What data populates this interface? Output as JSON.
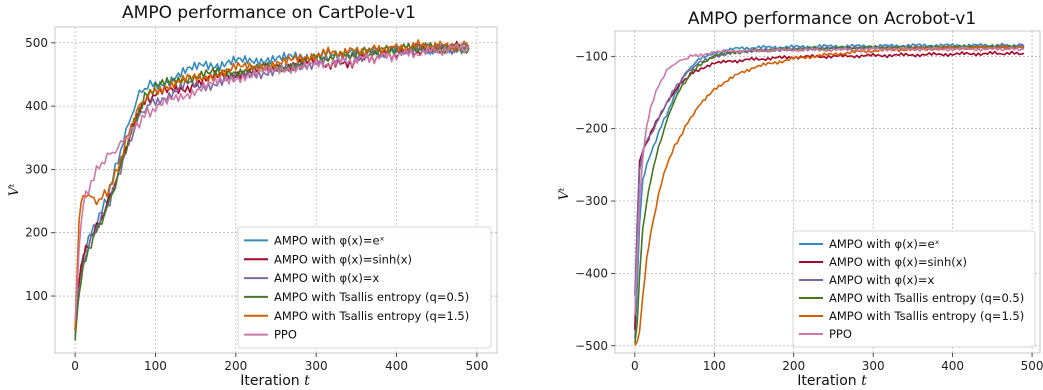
{
  "colors": {
    "exp": "#348abd",
    "sinh": "#a60628",
    "lin": "#7a68a6",
    "ts05": "#467821",
    "ts15": "#d55e00",
    "ppo": "#cc79a7"
  },
  "chart_data": [
    {
      "type": "line",
      "title": "AMPO performance on CartPole-v1",
      "xlabel": "Iteration t",
      "ylabel": "Vᵗ",
      "xlim": [
        -25,
        525
      ],
      "ylim": [
        10,
        525
      ],
      "xticks": [
        0,
        100,
        200,
        300,
        400,
        500
      ],
      "yticks": [
        100,
        200,
        300,
        400,
        500
      ],
      "grid": true,
      "legend_position": "lower-right",
      "series": [
        {
          "name": "AMPO with φ(x)=eˣ",
          "color_key": "exp",
          "x": [
            0,
            5,
            10,
            20,
            30,
            40,
            50,
            60,
            70,
            80,
            90,
            100,
            120,
            140,
            160,
            180,
            200,
            220,
            240,
            260,
            280,
            300,
            330,
            360,
            400,
            430,
            460,
            490
          ],
          "y": [
            45,
            130,
            165,
            200,
            225,
            255,
            300,
            345,
            385,
            420,
            432,
            435,
            442,
            455,
            468,
            465,
            470,
            472,
            475,
            475,
            478,
            480,
            482,
            485,
            488,
            490,
            492,
            493
          ]
        },
        {
          "name": "AMPO with φ(x)=sinh(x)",
          "color_key": "sinh",
          "x": [
            0,
            5,
            10,
            20,
            30,
            40,
            50,
            60,
            70,
            80,
            90,
            100,
            120,
            140,
            160,
            180,
            200,
            220,
            240,
            260,
            280,
            300,
            330,
            360,
            400,
            430,
            460,
            490
          ],
          "y": [
            40,
            120,
            160,
            195,
            215,
            245,
            280,
            320,
            360,
            395,
            410,
            418,
            425,
            430,
            440,
            448,
            452,
            455,
            458,
            462,
            470,
            468,
            465,
            475,
            482,
            488,
            492,
            495
          ]
        },
        {
          "name": "AMPO with φ(x)=x",
          "color_key": "lin",
          "x": [
            0,
            5,
            10,
            20,
            30,
            40,
            50,
            60,
            70,
            80,
            90,
            100,
            120,
            140,
            160,
            180,
            200,
            220,
            240,
            260,
            280,
            300,
            330,
            360,
            400,
            430,
            460,
            490
          ],
          "y": [
            38,
            110,
            150,
            190,
            215,
            240,
            275,
            315,
            350,
            385,
            400,
            408,
            420,
            435,
            430,
            440,
            445,
            450,
            455,
            458,
            462,
            470,
            475,
            480,
            488,
            490,
            492,
            490
          ]
        },
        {
          "name": "AMPO with Tsallis entropy (q=0.5)",
          "color_key": "ts05",
          "x": [
            0,
            5,
            10,
            20,
            30,
            40,
            50,
            60,
            70,
            80,
            90,
            100,
            120,
            140,
            160,
            180,
            200,
            220,
            240,
            260,
            280,
            300,
            330,
            360,
            400,
            430,
            460,
            490
          ],
          "y": [
            35,
            100,
            145,
            185,
            210,
            240,
            275,
            320,
            360,
            395,
            420,
            430,
            438,
            445,
            450,
            452,
            455,
            458,
            460,
            462,
            468,
            475,
            480,
            485,
            490,
            492,
            492,
            490
          ]
        },
        {
          "name": "AMPO with Tsallis entropy (q=1.5)",
          "color_key": "ts15",
          "x": [
            0,
            5,
            10,
            20,
            30,
            40,
            50,
            60,
            70,
            80,
            90,
            100,
            120,
            140,
            160,
            180,
            200,
            220,
            240,
            260,
            280,
            300,
            330,
            360,
            400,
            430,
            460,
            490
          ],
          "y": [
            45,
            230,
            262,
            255,
            250,
            265,
            290,
            330,
            370,
            400,
            415,
            425,
            435,
            442,
            445,
            452,
            460,
            462,
            465,
            468,
            475,
            482,
            485,
            488,
            492,
            495,
            495,
            496
          ]
        },
        {
          "name": "PPO",
          "color_key": "ppo",
          "x": [
            0,
            5,
            10,
            20,
            30,
            40,
            50,
            60,
            70,
            80,
            90,
            100,
            120,
            140,
            160,
            180,
            200,
            220,
            240,
            260,
            280,
            300,
            330,
            360,
            400,
            430,
            460,
            490
          ],
          "y": [
            55,
            170,
            245,
            280,
            305,
            320,
            330,
            345,
            360,
            375,
            390,
            395,
            410,
            420,
            430,
            438,
            445,
            450,
            455,
            460,
            462,
            465,
            470,
            475,
            480,
            485,
            490,
            493
          ]
        }
      ]
    },
    {
      "type": "line",
      "title": "AMPO performance on Acrobot-v1",
      "xlabel": "Iteration t",
      "ylabel": "Vᵗ",
      "xlim": [
        -25,
        510
      ],
      "ylim": [
        -510,
        -65
      ],
      "xticks": [
        0,
        100,
        200,
        300,
        400,
        500
      ],
      "yticks": [
        -500,
        -400,
        -300,
        -200,
        -100
      ],
      "grid": true,
      "legend_position": "lower-right",
      "series": [
        {
          "name": "AMPO with φ(x)=eˣ",
          "color_key": "exp",
          "x": [
            0,
            3,
            6,
            10,
            15,
            20,
            30,
            40,
            50,
            60,
            70,
            80,
            100,
            120,
            150,
            200,
            250,
            300,
            350,
            400,
            450,
            490
          ],
          "y": [
            -490,
            -420,
            -330,
            -270,
            -250,
            -235,
            -205,
            -180,
            -155,
            -130,
            -115,
            -105,
            -95,
            -90,
            -88,
            -87,
            -86,
            -86,
            -85,
            -85,
            -85,
            -85
          ]
        },
        {
          "name": "AMPO with φ(x)=sinh(x)",
          "color_key": "sinh",
          "x": [
            0,
            3,
            6,
            10,
            15,
            20,
            30,
            40,
            50,
            60,
            70,
            80,
            100,
            120,
            150,
            200,
            250,
            300,
            350,
            400,
            450,
            490
          ],
          "y": [
            -480,
            -330,
            -245,
            -230,
            -220,
            -205,
            -185,
            -165,
            -148,
            -135,
            -125,
            -118,
            -110,
            -107,
            -104,
            -101,
            -100,
            -99,
            -98,
            -97,
            -96,
            -96
          ]
        },
        {
          "name": "AMPO with φ(x)=x",
          "color_key": "lin",
          "x": [
            0,
            3,
            6,
            10,
            15,
            20,
            30,
            40,
            50,
            60,
            70,
            80,
            100,
            120,
            150,
            200,
            250,
            300,
            350,
            400,
            450,
            490
          ],
          "y": [
            -430,
            -330,
            -260,
            -230,
            -215,
            -210,
            -185,
            -165,
            -145,
            -130,
            -118,
            -110,
            -100,
            -95,
            -92,
            -90,
            -89,
            -88,
            -88,
            -87,
            -87,
            -86
          ]
        },
        {
          "name": "AMPO with Tsallis entropy (q=0.5)",
          "color_key": "ts05",
          "x": [
            0,
            3,
            6,
            10,
            15,
            20,
            30,
            40,
            50,
            60,
            70,
            80,
            100,
            120,
            150,
            200,
            250,
            300,
            350,
            400,
            450,
            490
          ],
          "y": [
            -495,
            -470,
            -400,
            -340,
            -300,
            -270,
            -225,
            -190,
            -160,
            -140,
            -125,
            -112,
            -100,
            -95,
            -92,
            -90,
            -89,
            -88,
            -88,
            -87,
            -87,
            -87
          ]
        },
        {
          "name": "AMPO with Tsallis entropy (q=1.5)",
          "color_key": "ts15",
          "x": [
            0,
            3,
            6,
            10,
            15,
            20,
            30,
            40,
            50,
            60,
            70,
            80,
            100,
            120,
            150,
            200,
            250,
            300,
            350,
            400,
            450,
            490
          ],
          "y": [
            -500,
            -495,
            -480,
            -430,
            -380,
            -345,
            -290,
            -250,
            -225,
            -205,
            -185,
            -170,
            -145,
            -130,
            -115,
            -103,
            -97,
            -92,
            -90,
            -89,
            -88,
            -88
          ]
        },
        {
          "name": "PPO",
          "color_key": "ppo",
          "x": [
            0,
            3,
            6,
            10,
            15,
            20,
            30,
            40,
            50,
            60,
            70,
            80,
            100,
            120,
            150,
            200,
            250,
            300,
            350,
            400,
            450,
            490
          ],
          "y": [
            -460,
            -380,
            -300,
            -240,
            -195,
            -170,
            -140,
            -120,
            -110,
            -105,
            -100,
            -98,
            -95,
            -93,
            -92,
            -91,
            -91,
            -90,
            -90,
            -90,
            -90,
            -90
          ]
        }
      ]
    }
  ]
}
